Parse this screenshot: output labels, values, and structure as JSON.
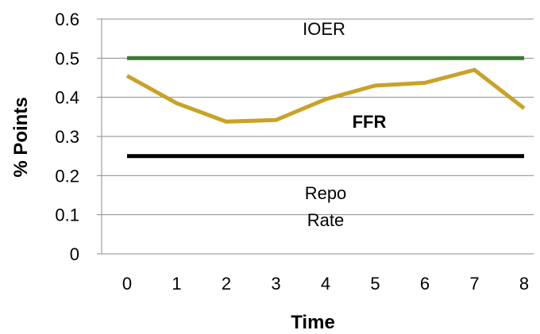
{
  "chart_data": {
    "type": "line",
    "xlabel": "Time",
    "ylabel": "% Points",
    "x": [
      0,
      1,
      2,
      3,
      4,
      5,
      6,
      7,
      8
    ],
    "x_ticks": [
      "0",
      "1",
      "2",
      "3",
      "4",
      "5",
      "6",
      "7",
      "8"
    ],
    "ylim": [
      0,
      0.6
    ],
    "y_ticks": [
      "0",
      "0.1",
      "0.2",
      "0.3",
      "0.4",
      "0.5",
      "0.6"
    ],
    "grid": "horizontal",
    "legend": "none",
    "series": [
      {
        "name": "IOER",
        "color": "#3c7a33",
        "values": [
          0.5,
          0.5,
          0.5,
          0.5,
          0.5,
          0.5,
          0.5,
          0.5,
          0.5
        ]
      },
      {
        "name": "FFR",
        "color": "#c9a227",
        "values": [
          0.455,
          0.385,
          0.338,
          0.342,
          0.395,
          0.43,
          0.437,
          0.47,
          0.372
        ]
      },
      {
        "name": "Repo Rate",
        "color": "#000000",
        "values": [
          0.25,
          0.25,
          0.25,
          0.25,
          0.25,
          0.25,
          0.25,
          0.25,
          0.25
        ]
      }
    ],
    "annotations": [
      {
        "text": "IOER",
        "series": "IOER"
      },
      {
        "text": "FFR",
        "series": "FFR",
        "bold": true
      },
      {
        "text": "Repo",
        "series": "Repo Rate"
      },
      {
        "text": "Rate",
        "series": "Repo Rate"
      }
    ]
  }
}
